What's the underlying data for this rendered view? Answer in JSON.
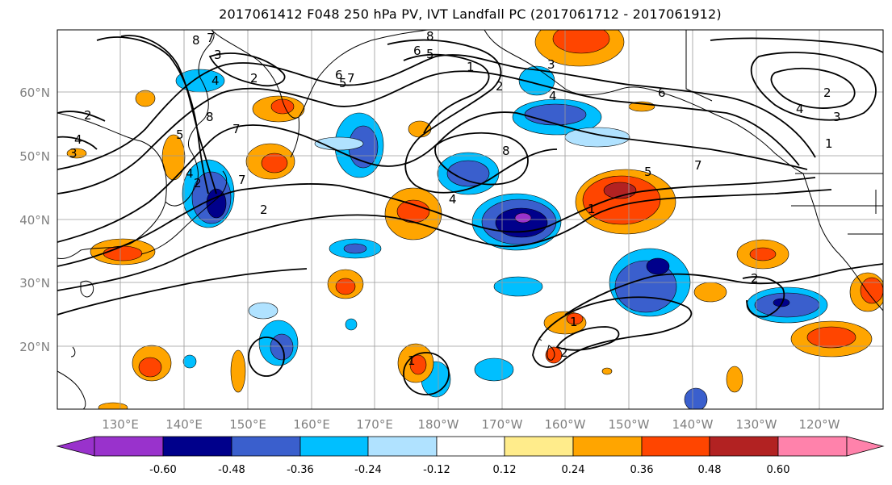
{
  "title": "2017061412 F048 250 hPa PV, IVT Landfall PC (2017061712 - 2017061912)",
  "lat_labels": [
    "60°N",
    "50°N",
    "40°N",
    "30°N",
    "20°N"
  ],
  "lon_labels": [
    "130°E",
    "140°E",
    "150°E",
    "160°E",
    "170°E",
    "180°W",
    "170°W",
    "160°W",
    "150°W",
    "140°W",
    "130°W",
    "120°W"
  ],
  "colorbar": {
    "colors": [
      "#9932cc",
      "#00008b",
      "#3a5fcd",
      "#00bfff",
      "#b0e2ff",
      "#ffffff",
      "#ffec8b",
      "#ffa500",
      "#ff4500",
      "#b22222",
      "#ff82ab"
    ],
    "tick_labels": [
      "-0.60",
      "-0.48",
      "-0.36",
      "-0.24",
      "-0.12",
      "0.12",
      "0.24",
      "0.36",
      "0.48",
      "0.60"
    ]
  },
  "contour_labels": [
    "8",
    "7",
    "3",
    "2",
    "4",
    "2",
    "8",
    "7",
    "5",
    "4",
    "3",
    "2",
    "7",
    "4",
    "2",
    "6",
    "5",
    "7",
    "8",
    "6",
    "5",
    "1",
    "2",
    "3",
    "4",
    "8",
    "4",
    "5",
    "1",
    "7",
    "6",
    "4",
    "3",
    "2",
    "1",
    "2",
    "1",
    "1",
    "2"
  ],
  "map_layers": [
    "250 hPa PV contours",
    "IVT landfall PC shading",
    "coastlines",
    "lat-lon grid"
  ]
}
